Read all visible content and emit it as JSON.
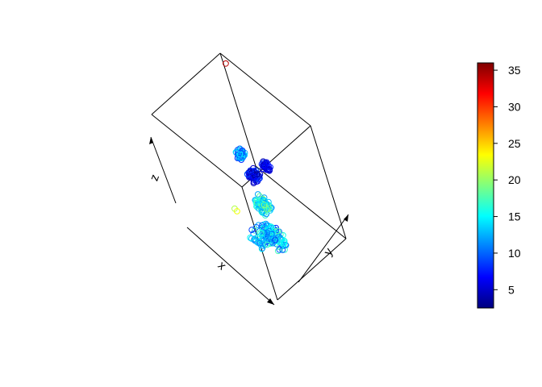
{
  "chart_data": {
    "type": "scatter",
    "dimensions": 3,
    "title": "",
    "xlabel": "x",
    "ylabel": "y",
    "zlabel": "z",
    "box": "full",
    "grid": false,
    "legend": "right",
    "colorbar": {
      "colormap": "jet",
      "range": [
        2.5,
        36
      ],
      "ticks": [
        5,
        10,
        15,
        20,
        25,
        30,
        35
      ],
      "colors": [
        "#00007F",
        "#0000FF",
        "#007FFF",
        "#00FFFF",
        "#7FFF7F",
        "#FFFF00",
        "#FF7F00",
        "#FF0000",
        "#7F0000"
      ]
    },
    "point_marker": "open-circle",
    "point_count": 320,
    "groups": [
      {
        "name": "",
        "n": 40,
        "x": [
          0.12,
          0.18
        ],
        "y": [
          0.72,
          0.8
        ],
        "z": [
          0.3,
          0.36
        ],
        "c": [
          8,
          15
        ]
      },
      {
        "name": "",
        "n": 30,
        "x": [
          0.3,
          0.38
        ],
        "y": [
          0.82,
          0.88
        ],
        "z": [
          0.28,
          0.32
        ],
        "c": [
          4,
          8
        ]
      },
      {
        "name": "",
        "n": 50,
        "x": [
          0.28,
          0.38
        ],
        "y": [
          0.65,
          0.75
        ],
        "z": [
          0.26,
          0.32
        ],
        "c": [
          3,
          10
        ]
      },
      {
        "name": "",
        "n": 70,
        "x": [
          0.38,
          0.5
        ],
        "y": [
          0.55,
          0.65
        ],
        "z": [
          0.12,
          0.2
        ],
        "c": [
          11,
          20
        ]
      },
      {
        "name": "",
        "n": 80,
        "x": [
          0.5,
          0.72
        ],
        "y": [
          0.42,
          0.55
        ],
        "z": [
          0.0,
          0.1
        ],
        "c": [
          8,
          18
        ]
      },
      {
        "name": "",
        "n": 50,
        "x": [
          0.55,
          0.7
        ],
        "y": [
          0.25,
          0.48
        ],
        "z": [
          0.08,
          0.18
        ],
        "c": [
          9,
          17
        ]
      }
    ],
    "outliers": [
      {
        "x": 0.1,
        "y": 0.95,
        "z": 1.0,
        "c": 34
      },
      {
        "x": 0.4,
        "y": 0.3,
        "z": 0.26,
        "c": 21
      },
      {
        "x": 0.45,
        "y": 0.28,
        "z": 0.28,
        "c": 23
      }
    ]
  }
}
